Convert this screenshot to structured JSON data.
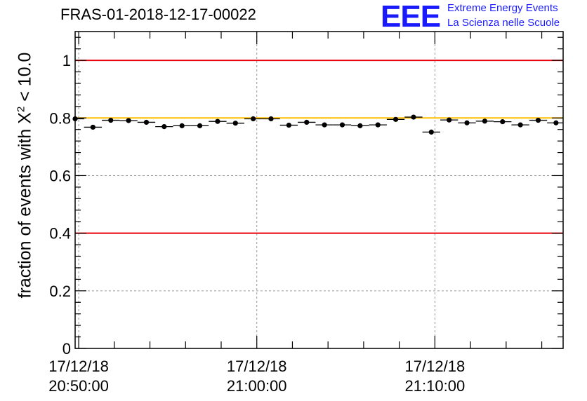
{
  "chart_data": {
    "type": "scatter",
    "title": "FRAS-01-2018-12-17-00022",
    "ylabel_prefix": "fraction of events with ",
    "ylabel_symbol": "X",
    "ylabel_sup": "2",
    "ylabel_suffix": " < 10.0",
    "xlim_minutes": [
      -0.2,
      27.2
    ],
    "ylim": [
      0,
      1.1
    ],
    "yticks": [
      0,
      0.2,
      0.4,
      0.6,
      0.8,
      1
    ],
    "ytick_labels": [
      "0",
      "0.2",
      "0.4",
      "0.6",
      "0.8",
      "1"
    ],
    "xticks": [
      {
        "minute": 0,
        "date": "17/12/18",
        "time": "20:50:00"
      },
      {
        "minute": 10,
        "date": "17/12/18",
        "time": "21:00:00"
      },
      {
        "minute": 20,
        "date": "17/12/18",
        "time": "21:10:00"
      }
    ],
    "grid": true,
    "reference_lines": [
      {
        "y": 1.0,
        "color": "#e8000b"
      },
      {
        "y": 0.4,
        "color": "#e8000b"
      },
      {
        "y": 0.8,
        "color": "#ffc000"
      }
    ],
    "series": [
      {
        "bin_width_minutes": 1,
        "x_minutes": [
          -0.2,
          0.8,
          1.8,
          2.8,
          3.8,
          4.8,
          5.8,
          6.8,
          7.8,
          8.8,
          9.8,
          10.8,
          11.8,
          12.8,
          13.8,
          14.8,
          15.8,
          16.8,
          17.8,
          18.8,
          19.8,
          20.8,
          21.8,
          22.8,
          23.8,
          24.8,
          25.8,
          26.8
        ],
        "y": [
          0.797,
          0.768,
          0.792,
          0.791,
          0.785,
          0.77,
          0.773,
          0.773,
          0.788,
          0.782,
          0.797,
          0.797,
          0.775,
          0.785,
          0.776,
          0.776,
          0.773,
          0.776,
          0.795,
          0.803,
          0.751,
          0.793,
          0.783,
          0.789,
          0.787,
          0.776,
          0.792,
          0.783
        ],
        "err": [
          0.006,
          0.006,
          0.006,
          0.006,
          0.006,
          0.006,
          0.006,
          0.006,
          0.006,
          0.006,
          0.006,
          0.006,
          0.006,
          0.006,
          0.006,
          0.006,
          0.006,
          0.006,
          0.006,
          0.006,
          0.006,
          0.006,
          0.006,
          0.006,
          0.006,
          0.006,
          0.006,
          0.006
        ],
        "color": "#000000"
      }
    ]
  },
  "logo": {
    "mark": "EEE",
    "line1": "Extreme Energy Events",
    "line2": "La Scienza nelle Scuole",
    "color": "#1a1aff"
  }
}
